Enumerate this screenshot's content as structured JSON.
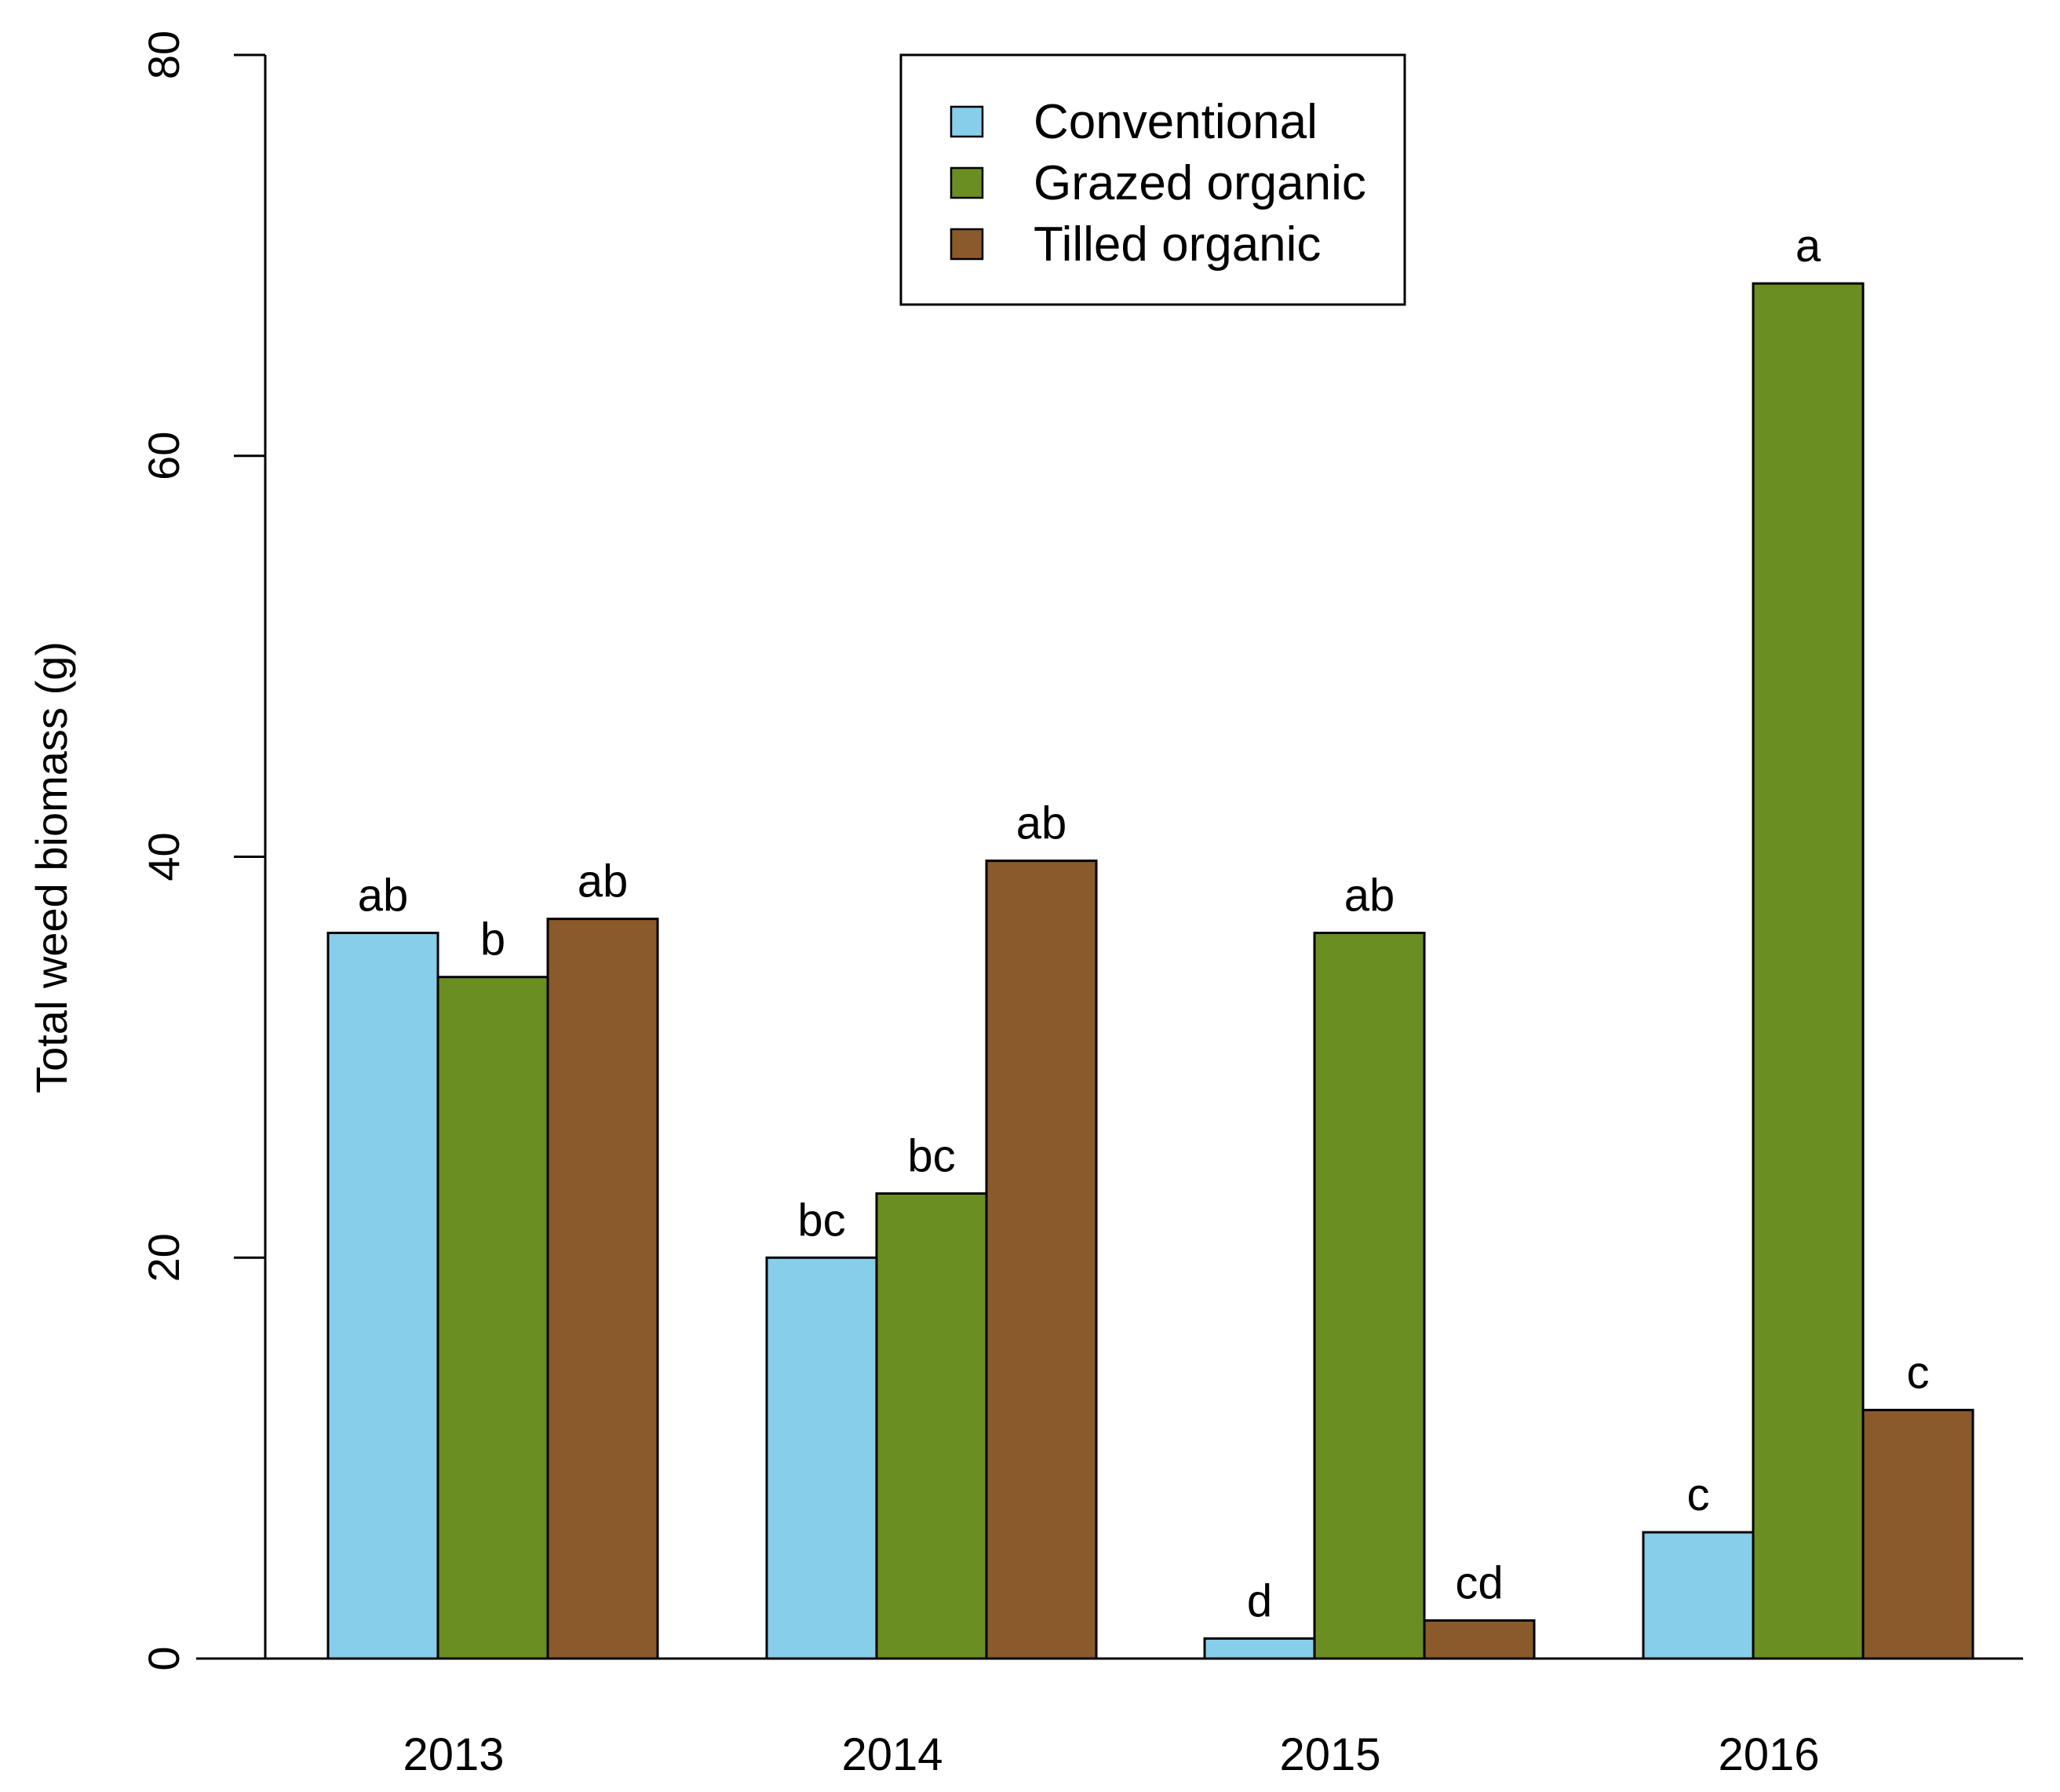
{
  "chart_data": {
    "type": "bar",
    "title": "",
    "xlabel": "",
    "ylabel": "Total weed biomass (g)",
    "ylim": [
      0,
      80
    ],
    "yticks": [
      0,
      20,
      40,
      60,
      80
    ],
    "categories": [
      "2013",
      "2014",
      "2015",
      "2016"
    ],
    "series": [
      {
        "name": "Conventional",
        "color": "#87CEEB",
        "values": [
          36.2,
          20.0,
          1.0,
          6.3
        ],
        "labels": [
          "ab",
          "bc",
          "d",
          "c"
        ]
      },
      {
        "name": "Grazed organic",
        "color": "#6B8E23",
        "values": [
          34.0,
          23.2,
          36.2,
          68.6
        ],
        "labels": [
          "b",
          "bc",
          "ab",
          "a"
        ]
      },
      {
        "name": "Tilled organic",
        "color": "#8B5A2B",
        "values": [
          36.9,
          39.8,
          1.9,
          12.4
        ],
        "labels": [
          "ab",
          "ab",
          "cd",
          "c"
        ]
      }
    ],
    "legend_position": "top-center"
  }
}
